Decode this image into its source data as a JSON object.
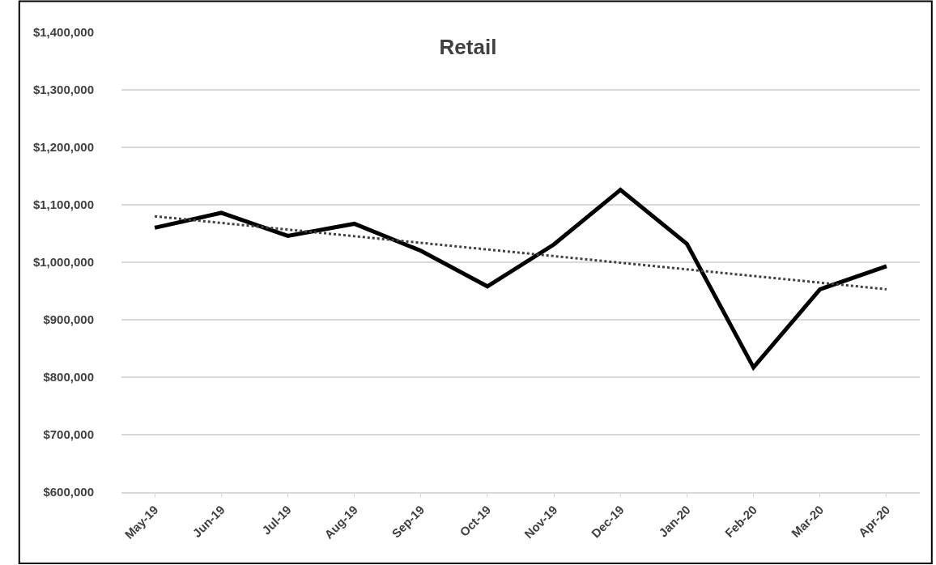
{
  "chart_data": {
    "type": "line",
    "title": "Retail",
    "categories": [
      "May-19",
      "Jun-19",
      "Jul-19",
      "Aug-19",
      "Sep-19",
      "Oct-19",
      "Nov-19",
      "Dec-19",
      "Jan-20",
      "Feb-20",
      "Mar-20",
      "Apr-20"
    ],
    "series": [
      {
        "color": "#000000",
        "values": [
          1060000,
          1086000,
          1046000,
          1067000,
          1020000,
          958000,
          1031000,
          1126000,
          1032000,
          817000,
          953000,
          993000
        ]
      },
      {
        "type": "line",
        "color": "#404040",
        "line_style": "dotted",
        "x": [
          "May-19",
          "Apr-20"
        ],
        "values": [
          1080000,
          953000
        ]
      }
    ],
    "ylim": [
      600000,
      1400000
    ],
    "yticks": [
      {
        "value": 600000,
        "label": "$600,000"
      },
      {
        "value": 700000,
        "label": "$700,000"
      },
      {
        "value": 800000,
        "label": "$800,000"
      },
      {
        "value": 900000,
        "label": "$900,000"
      },
      {
        "value": 1000000,
        "label": "$1,000,000"
      },
      {
        "value": 1100000,
        "label": "$1,100,000"
      },
      {
        "value": 1200000,
        "label": "$1,200,000"
      },
      {
        "value": 1300000,
        "label": "$1,300,000"
      },
      {
        "value": 1400000,
        "label": "$1,400,000"
      }
    ],
    "grid": "y",
    "marker": "none",
    "line_style": "solid"
  }
}
